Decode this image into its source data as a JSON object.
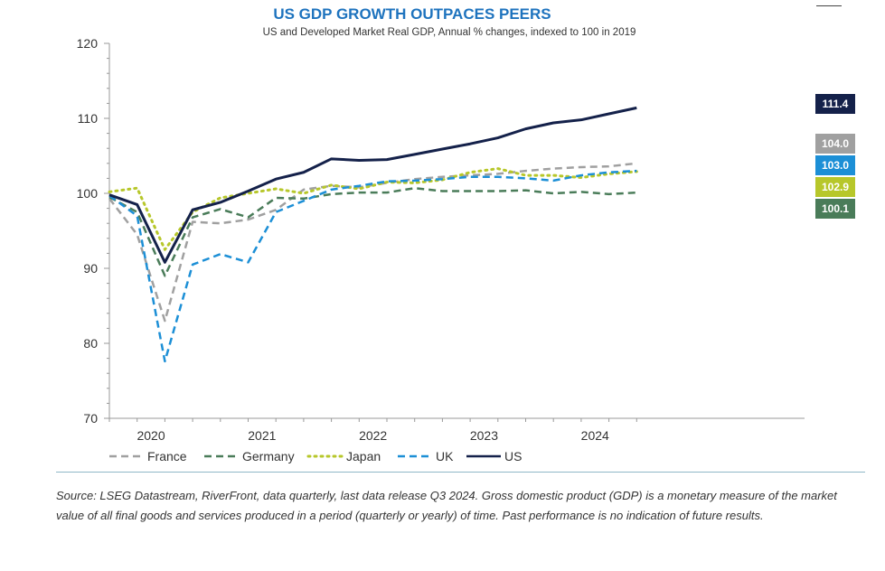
{
  "chart_data": {
    "type": "line",
    "title": "US GDP GROWTH OUTPACES PEERS",
    "subtitle": "US and Developed Market Real GDP, Annual % changes, indexed to 100 in 2019",
    "ylim": [
      70,
      120
    ],
    "yticks": [
      70,
      80,
      90,
      100,
      110,
      120
    ],
    "xticks": [
      "2020",
      "2021",
      "2022",
      "2023",
      "2024"
    ],
    "x": [
      "2019Q4",
      "2020Q1",
      "2020Q2",
      "2020Q3",
      "2020Q4",
      "2021Q1",
      "2021Q2",
      "2021Q3",
      "2021Q4",
      "2022Q1",
      "2022Q2",
      "2022Q3",
      "2022Q4",
      "2023Q1",
      "2023Q2",
      "2023Q3",
      "2023Q4",
      "2024Q1",
      "2024Q2",
      "2024Q3"
    ],
    "series": [
      {
        "name": "France",
        "color": "#a0a0a0",
        "dash": "dashed",
        "values": [
          99.3,
          94.5,
          83.0,
          96.2,
          96.0,
          96.5,
          97.8,
          100.5,
          101.0,
          100.8,
          101.4,
          101.9,
          102.2,
          102.4,
          102.6,
          103.0,
          103.3,
          103.5,
          103.6,
          104.0
        ]
      },
      {
        "name": "Germany",
        "color": "#4a7c59",
        "dash": "dashed",
        "values": [
          99.5,
          97.5,
          89.0,
          96.8,
          97.9,
          96.8,
          99.4,
          99.3,
          99.9,
          100.1,
          100.1,
          100.7,
          100.3,
          100.3,
          100.3,
          100.4,
          100.0,
          100.2,
          99.9,
          100.1
        ]
      },
      {
        "name": "Japan",
        "color": "#b7c72a",
        "dash": "dotted",
        "values": [
          100.2,
          100.7,
          92.5,
          97.5,
          99.4,
          100.0,
          100.6,
          100.0,
          101.1,
          100.6,
          101.5,
          101.4,
          101.8,
          102.8,
          103.3,
          102.4,
          102.4,
          102.1,
          102.6,
          102.9
        ]
      },
      {
        "name": "UK",
        "color": "#1c8fd6",
        "dash": "dashed",
        "values": [
          99.7,
          97.0,
          77.6,
          90.5,
          91.9,
          90.8,
          97.5,
          99.0,
          100.5,
          101.0,
          101.6,
          101.7,
          101.9,
          102.2,
          102.2,
          102.0,
          101.7,
          102.4,
          102.8,
          103.0
        ]
      },
      {
        "name": "US",
        "color": "#14214a",
        "dash": "solid",
        "values": [
          99.8,
          98.5,
          90.8,
          97.8,
          98.8,
          100.3,
          101.9,
          102.8,
          104.6,
          104.4,
          104.5,
          105.2,
          105.9,
          106.6,
          107.4,
          108.6,
          109.4,
          109.8,
          110.6,
          111.4
        ]
      }
    ],
    "end_labels": [
      {
        "series": "US",
        "text": "111.4",
        "color": "#14214a"
      },
      {
        "series": "France",
        "text": "104.0",
        "color": "#a0a0a0"
      },
      {
        "series": "UK",
        "text": "103.0",
        "color": "#1c8fd6"
      },
      {
        "series": "Japan",
        "text": "102.9",
        "color": "#b7c72a"
      },
      {
        "series": "Germany",
        "text": "100.1",
        "color": "#4a7c59"
      }
    ],
    "legend_position": "bottom",
    "grid": false
  },
  "source_note": "Source: LSEG Datastream, RiverFront, data quarterly, last data release Q3 2024. Gross domestic product (GDP) is a monetary measure of the market value of all final goods and services produced in a period (quarterly or yearly) of time. Past performance is no indication of future results."
}
